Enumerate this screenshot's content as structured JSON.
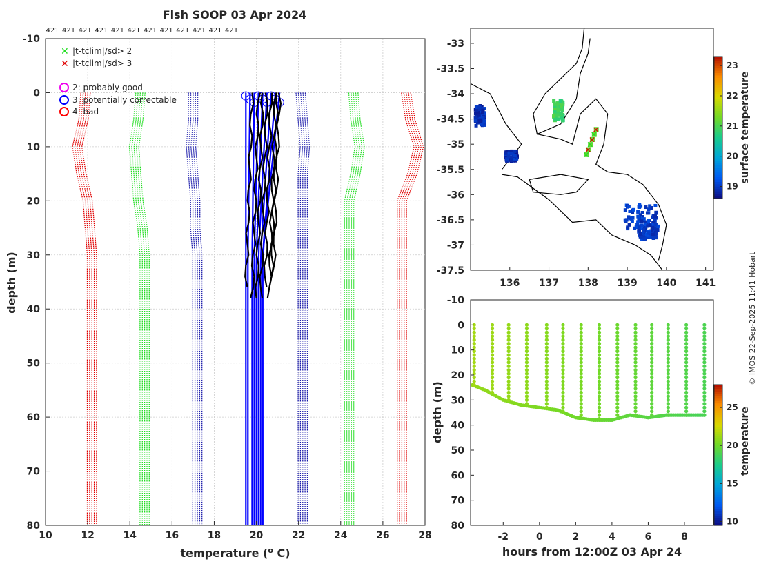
{
  "chart_data": [
    {
      "id": "profiles",
      "type": "line",
      "title": "Fish SOOP 03 Apr 2024",
      "xlabel": "temperature (",
      "xlabel_sup": "o",
      "xlabel_end": " C)",
      "ylabel": "depth (m)",
      "xlim": [
        10,
        28
      ],
      "ylim": [
        80,
        -10
      ],
      "xticks": [
        10,
        12,
        14,
        16,
        18,
        20,
        22,
        24,
        26,
        28
      ],
      "yticks": [
        -10,
        0,
        10,
        20,
        30,
        40,
        50,
        60,
        70,
        80
      ],
      "top_labels": [
        "421",
        "421",
        "421",
        "421",
        "421",
        "421",
        "421",
        "421",
        "421",
        "421",
        "421",
        "421"
      ],
      "legend": {
        "x_green": "|t-tclim|/sd> 2",
        "x_red": "|t-tclim|/sd> 3",
        "flag2": "2: probably good",
        "flag3": "3: potentially correctable",
        "flag4": "4: bad"
      },
      "climatology_depths": [
        0,
        5,
        10,
        15,
        20,
        25,
        30,
        40,
        60,
        80
      ],
      "climatology_series": [
        {
          "name": "clim-3sd-low",
          "color": "#e00000",
          "values": [
            11.9,
            11.8,
            11.5,
            11.7,
            12.0,
            12.1,
            12.2,
            12.2,
            12.2,
            12.2
          ]
        },
        {
          "name": "clim-2sd-low",
          "color": "#22dd22",
          "values": [
            14.5,
            14.4,
            14.2,
            14.3,
            14.4,
            14.6,
            14.7,
            14.7,
            14.7,
            14.7
          ]
        },
        {
          "name": "clim-1sd-low",
          "color": "#1a1aaa",
          "values": [
            17.0,
            17.0,
            16.9,
            17.0,
            17.1,
            17.1,
            17.2,
            17.2,
            17.2,
            17.2
          ]
        },
        {
          "name": "clim-1sd-high",
          "color": "#1a1aaa",
          "values": [
            22.1,
            22.2,
            22.3,
            22.2,
            22.2,
            22.2,
            22.2,
            22.2,
            22.2,
            22.2
          ]
        },
        {
          "name": "clim-2sd-high",
          "color": "#22dd22",
          "values": [
            24.6,
            24.7,
            24.9,
            24.7,
            24.4,
            24.4,
            24.4,
            24.4,
            24.4,
            24.4
          ]
        },
        {
          "name": "clim-3sd-high",
          "color": "#e00000",
          "values": [
            27.1,
            27.3,
            27.7,
            27.4,
            26.9,
            26.9,
            26.9,
            26.9,
            26.9,
            26.9
          ]
        }
      ],
      "blue_profiles": {
        "color": "#0000ff",
        "surface_x": [
          19.5,
          19.7,
          19.9,
          20.1,
          20.3,
          20.5,
          20.7,
          20.9,
          21.1
        ],
        "bottom_x": [
          19.5,
          19.6,
          19.8,
          19.9,
          20.0,
          20.1,
          20.2,
          20.3,
          20.3
        ]
      },
      "black_profiles": {
        "color": "#000000",
        "surface_x": [
          19.8,
          20.1,
          20.3,
          20.5,
          20.7,
          20.9,
          21.0,
          21.1
        ],
        "bottom_depths": [
          37,
          38,
          39,
          38,
          37,
          39,
          36,
          35
        ]
      }
    },
    {
      "id": "map",
      "type": "heatmap",
      "xlim": [
        135,
        141.2
      ],
      "ylim": [
        -37.5,
        -32.7
      ],
      "xticks": [
        136,
        137,
        138,
        139,
        140,
        141
      ],
      "yticks": [
        -33,
        -33.5,
        -34,
        -34.5,
        -35,
        -35.5,
        -36,
        -36.5,
        -37,
        -37.5
      ],
      "colorbar": {
        "label": "surface temperature",
        "ticks": [
          19,
          20,
          21,
          22,
          23
        ],
        "range": [
          18.6,
          23.3
        ]
      },
      "track_lon": [
        137.95,
        138.0,
        138.05,
        138.1,
        138.15,
        138.2
      ],
      "track_lat": [
        -35.2,
        -35.1,
        -35.0,
        -34.9,
        -34.8,
        -34.7
      ]
    },
    {
      "id": "section",
      "type": "scatter",
      "xlabel": "hours from 12:00Z 03 Apr 24",
      "ylabel": "depth (m)",
      "xlim": [
        -3.8,
        9.6
      ],
      "ylim": [
        80,
        -10
      ],
      "xticks": [
        -2,
        0,
        2,
        4,
        6,
        8
      ],
      "yticks": [
        -10,
        0,
        10,
        20,
        30,
        40,
        50,
        60,
        70,
        80
      ],
      "colorbar": {
        "label": "temperature",
        "ticks": [
          10,
          15,
          20,
          25
        ],
        "range": [
          9.5,
          28
        ]
      },
      "bottom_hours": [
        -3.7,
        -3.0,
        -2.0,
        -1.0,
        0.0,
        1.0,
        2.0,
        3.0,
        4.0,
        5.0,
        6.0,
        7.0,
        8.0,
        9.0
      ],
      "bottom_depths": [
        24,
        26,
        30,
        32,
        33,
        34,
        37,
        38,
        38,
        36,
        37,
        36,
        36,
        36
      ],
      "cast_hours": [
        -3.6,
        -2.6,
        -1.7,
        -0.7,
        0.4,
        1.3,
        2.3,
        3.3,
        4.3,
        5.3,
        6.2,
        7.1,
        8.1,
        9.1
      ]
    }
  ],
  "footer": {
    "credit": "© IMOS 22-Sep-2025 11:41 Hobart"
  }
}
